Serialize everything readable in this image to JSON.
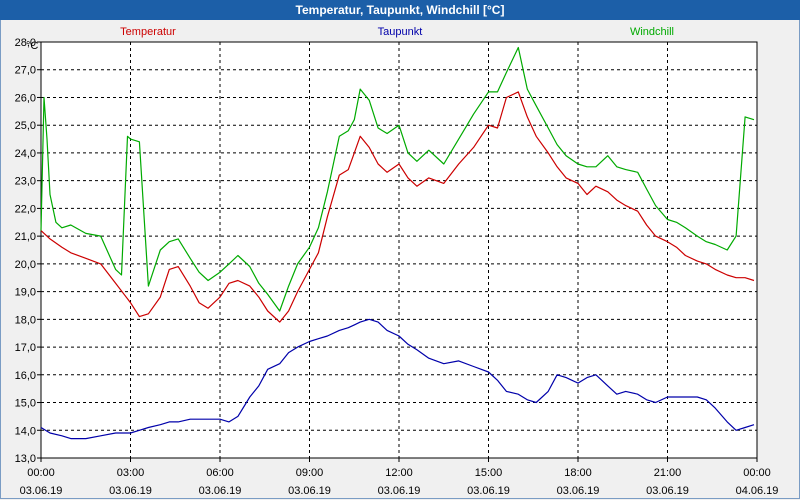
{
  "window": {
    "title": "Temperatur, Taupunkt, Windchill [°C]"
  },
  "chart_data": {
    "type": "line",
    "title": "Temperatur, Taupunkt, Windchill [°C]",
    "ylabel": "°C",
    "ylim": [
      13.0,
      28.0
    ],
    "yticks": [
      "28,0",
      "27,0",
      "26,0",
      "25,0",
      "24,0",
      "23,0",
      "22,0",
      "21,0",
      "20,0",
      "19,0",
      "18,0",
      "17,0",
      "16,0",
      "15,0",
      "14,0",
      "13,0"
    ],
    "xlim": [
      0,
      24
    ],
    "xticks": [
      {
        "time": "00:00",
        "date": "03.06.19"
      },
      {
        "time": "03:00",
        "date": "03.06.19"
      },
      {
        "time": "06:00",
        "date": "03.06.19"
      },
      {
        "time": "09:00",
        "date": "03.06.19"
      },
      {
        "time": "12:00",
        "date": "03.06.19"
      },
      {
        "time": "15:00",
        "date": "03.06.19"
      },
      {
        "time": "18:00",
        "date": "03.06.19"
      },
      {
        "time": "21:00",
        "date": "03.06.19"
      },
      {
        "time": "00:00",
        "date": "04.06.19"
      }
    ],
    "grid": true,
    "series": [
      {
        "name": "Temperatur",
        "color": "#cc0000",
        "x": [
          0,
          0.3,
          0.7,
          1,
          1.5,
          2,
          2.5,
          3,
          3.3,
          3.6,
          4,
          4.3,
          4.6,
          5,
          5.3,
          5.6,
          6,
          6.3,
          6.6,
          7,
          7.3,
          7.6,
          8,
          8.3,
          8.6,
          9,
          9.3,
          9.6,
          10,
          10.3,
          10.5,
          10.7,
          11,
          11.3,
          11.6,
          12,
          12.3,
          12.6,
          13,
          13.5,
          14,
          14.5,
          15,
          15.3,
          15.6,
          16,
          16.3,
          16.6,
          17,
          17.3,
          17.6,
          18,
          18.3,
          18.6,
          19,
          19.3,
          19.6,
          20,
          20.3,
          20.6,
          21,
          21.3,
          21.6,
          22,
          22.3,
          22.6,
          23,
          23.3,
          23.6,
          23.9
        ],
        "values": [
          21.2,
          20.9,
          20.6,
          20.4,
          20.2,
          20.0,
          19.3,
          18.6,
          18.1,
          18.2,
          18.8,
          19.8,
          19.9,
          19.2,
          18.6,
          18.4,
          18.8,
          19.3,
          19.4,
          19.2,
          18.8,
          18.3,
          17.9,
          18.3,
          19.0,
          19.8,
          20.4,
          21.7,
          23.2,
          23.4,
          24.0,
          24.6,
          24.2,
          23.6,
          23.3,
          23.6,
          23.1,
          22.8,
          23.1,
          22.9,
          23.6,
          24.2,
          25.0,
          24.9,
          26.0,
          26.2,
          25.3,
          24.6,
          24.0,
          23.5,
          23.1,
          22.9,
          22.5,
          22.8,
          22.6,
          22.3,
          22.1,
          21.9,
          21.4,
          21.0,
          20.8,
          20.6,
          20.3,
          20.1,
          20.0,
          19.8,
          19.6,
          19.5,
          19.5,
          19.4
        ]
      },
      {
        "name": "Taupunkt",
        "color": "#0000aa",
        "x": [
          0,
          0.3,
          0.7,
          1,
          1.5,
          2,
          2.5,
          3,
          3.3,
          3.6,
          4,
          4.3,
          4.6,
          5,
          5.3,
          5.6,
          6,
          6.3,
          6.6,
          7,
          7.3,
          7.6,
          8,
          8.3,
          8.6,
          9,
          9.3,
          9.6,
          10,
          10.3,
          10.5,
          10.7,
          11,
          11.3,
          11.6,
          12,
          12.3,
          12.6,
          13,
          13.5,
          14,
          14.5,
          15,
          15.3,
          15.6,
          16,
          16.3,
          16.6,
          17,
          17.3,
          17.6,
          18,
          18.3,
          18.6,
          19,
          19.3,
          19.6,
          20,
          20.3,
          20.6,
          21,
          21.3,
          21.6,
          22,
          22.3,
          22.6,
          23,
          23.3,
          23.6,
          23.9
        ],
        "values": [
          14.1,
          13.9,
          13.8,
          13.7,
          13.7,
          13.8,
          13.9,
          13.9,
          14.0,
          14.1,
          14.2,
          14.3,
          14.3,
          14.4,
          14.4,
          14.4,
          14.4,
          14.3,
          14.5,
          15.2,
          15.6,
          16.2,
          16.4,
          16.8,
          17.0,
          17.2,
          17.3,
          17.4,
          17.6,
          17.7,
          17.8,
          17.9,
          18.0,
          17.9,
          17.6,
          17.4,
          17.1,
          16.9,
          16.6,
          16.4,
          16.5,
          16.3,
          16.1,
          15.8,
          15.4,
          15.3,
          15.1,
          15.0,
          15.4,
          16.0,
          15.9,
          15.7,
          15.9,
          16.0,
          15.6,
          15.3,
          15.4,
          15.3,
          15.1,
          15.0,
          15.2,
          15.2,
          15.2,
          15.2,
          15.1,
          14.8,
          14.3,
          14.0,
          14.1,
          14.2
        ]
      },
      {
        "name": "Windchill",
        "color": "#00aa00",
        "x": [
          0,
          0.1,
          0.2,
          0.3,
          0.5,
          0.7,
          1,
          1.5,
          2,
          2.5,
          2.7,
          2.9,
          3,
          3.3,
          3.6,
          4,
          4.3,
          4.6,
          5,
          5.3,
          5.6,
          6,
          6.3,
          6.6,
          7,
          7.3,
          7.6,
          8,
          8.3,
          8.6,
          9,
          9.3,
          9.6,
          10,
          10.3,
          10.5,
          10.7,
          11,
          11.3,
          11.6,
          12,
          12.3,
          12.6,
          13,
          13.5,
          14,
          14.5,
          15,
          15.3,
          15.6,
          16,
          16.3,
          16.6,
          17,
          17.3,
          17.6,
          18,
          18.3,
          18.6,
          19,
          19.3,
          19.6,
          20,
          20.3,
          20.6,
          21,
          21.3,
          21.6,
          22,
          22.3,
          22.6,
          23,
          23.3,
          23.6,
          23.9
        ],
        "values": [
          21.2,
          26.0,
          24.5,
          22.5,
          21.5,
          21.3,
          21.4,
          21.1,
          21.0,
          19.8,
          19.6,
          24.6,
          24.5,
          24.4,
          19.2,
          20.5,
          20.8,
          20.9,
          20.2,
          19.7,
          19.4,
          19.7,
          20.0,
          20.3,
          19.9,
          19.3,
          18.9,
          18.3,
          19.2,
          20.0,
          20.6,
          21.3,
          22.6,
          24.6,
          24.8,
          25.2,
          26.3,
          25.9,
          24.9,
          24.7,
          25.0,
          24.0,
          23.7,
          24.1,
          23.6,
          24.5,
          25.4,
          26.2,
          26.2,
          26.9,
          27.8,
          26.3,
          25.7,
          24.9,
          24.3,
          23.9,
          23.6,
          23.5,
          23.5,
          23.9,
          23.5,
          23.4,
          23.3,
          22.7,
          22.1,
          21.6,
          21.5,
          21.3,
          21.0,
          20.8,
          20.7,
          20.5,
          21.0,
          25.3,
          25.2
        ]
      }
    ]
  }
}
